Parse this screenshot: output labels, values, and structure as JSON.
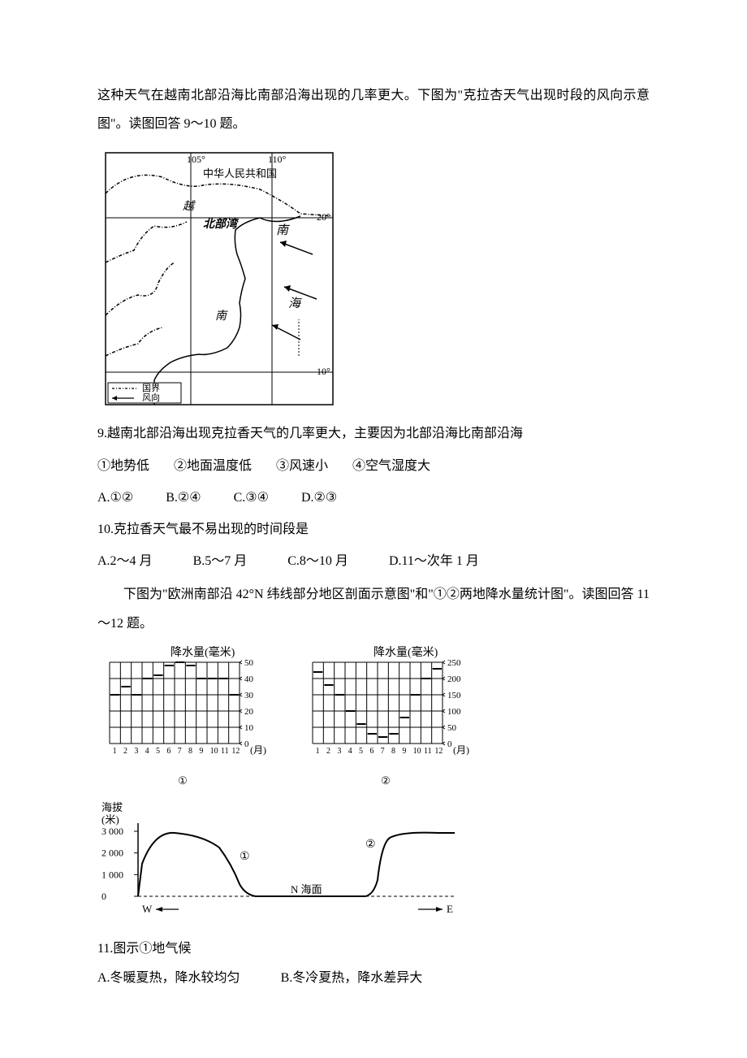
{
  "intro_para": "这种天气在越南北部沿海比南部沿海出现的几率更大。下图为\"克拉杏天气出现时段的风向示意图\"。读图回答 9～10 题。",
  "map": {
    "lon_labels": [
      "105°",
      "110°"
    ],
    "lat_labels": [
      "20°",
      "10°"
    ],
    "region_labels": {
      "country_top": "中华人民共和国",
      "vietnam": "越",
      "north_bay": "北部湾",
      "south": "南",
      "sea": "海"
    },
    "legend": {
      "border": "国界",
      "wind": "风向"
    }
  },
  "q9": {
    "text": "9.越南北部沿海出现克拉香天气的几率更大，主要因为北部沿海比南部沿海",
    "circled": [
      "①地势低",
      "②地面温度低",
      "③风速小",
      "④空气湿度大"
    ],
    "options": [
      "A.①②",
      "B.②④",
      "C.③④",
      "D.②③"
    ]
  },
  "q10": {
    "text": "10.克拉香天气最不易出现的时间段是",
    "options": [
      "A.2～4 月",
      "B.5～7 月",
      "C.8～10 月",
      "D.11～次年 1 月"
    ]
  },
  "charts_intro": "下图为\"欧洲南部沿 42°N 纬线部分地区剖面示意图\"和\"①②两地降水量统计图\"。读图回答 11～12 题。",
  "chart1": {
    "title": "降水量(毫米)",
    "x_labels": [
      "1",
      "2",
      "3",
      "4",
      "5",
      "6",
      "7",
      "8",
      "9",
      "10",
      "11",
      "12"
    ],
    "x_unit": "(月)",
    "y_ticks": [
      0,
      10,
      20,
      30,
      40,
      50
    ],
    "values": [
      30,
      35,
      30,
      40,
      42,
      48,
      50,
      48,
      40,
      40,
      40,
      30
    ],
    "label": "①",
    "grid_color": "#000000",
    "bar_color": "#000000",
    "bg_color": "#ffffff"
  },
  "chart2": {
    "title": "降水量(毫米)",
    "x_labels": [
      "1",
      "2",
      "3",
      "4",
      "5",
      "6",
      "7",
      "8",
      "9",
      "10",
      "11",
      "12"
    ],
    "x_unit": "(月)",
    "y_ticks": [
      0,
      50,
      100,
      150,
      200,
      250
    ],
    "values": [
      220,
      180,
      150,
      100,
      60,
      30,
      20,
      30,
      80,
      150,
      200,
      230
    ],
    "label": "②",
    "grid_color": "#000000",
    "bar_color": "#000000",
    "bg_color": "#ffffff"
  },
  "profile": {
    "y_label": "海拔\n(米)",
    "y_ticks": [
      "3 000",
      "2 000",
      "1 000",
      "0"
    ],
    "west_label": "W",
    "east_label": "E",
    "sea_label": "N 海面",
    "marker1": "①",
    "marker2": "②"
  },
  "q11": {
    "text": "11.图示①地气候",
    "optA": "A.冬暖夏热，降水较均匀",
    "optB": "B.冬冷夏热，降水差异大"
  }
}
